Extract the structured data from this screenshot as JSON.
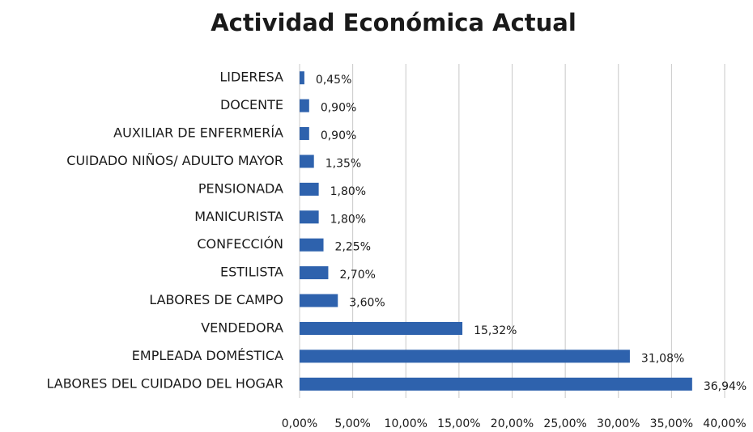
{
  "chart_data": {
    "type": "bar",
    "orientation": "horizontal",
    "title": "Actividad Económica Actual",
    "categories": [
      "LIDERESA",
      "DOCENTE",
      "AUXILIAR DE ENFERMERÍA",
      "CUIDADO NIÑOS/ ADULTO MAYOR",
      "PENSIONADA",
      "MANICURISTA",
      "CONFECCIÓN",
      "ESTILISTA",
      "LABORES DE CAMPO",
      "VENDEDORA",
      "EMPLEADA DOMÉSTICA",
      "LABORES DEL CUIDADO DEL HOGAR"
    ],
    "values": [
      0.45,
      0.9,
      0.9,
      1.35,
      1.8,
      1.8,
      2.25,
      2.7,
      3.6,
      15.32,
      31.08,
      36.94
    ],
    "value_labels": [
      "0,45%",
      "0,90%",
      "0,90%",
      "1,35%",
      "1,80%",
      "1,80%",
      "2,25%",
      "2,70%",
      "3,60%",
      "15,32%",
      "31,08%",
      "36,94%"
    ],
    "color": "#2e62ad",
    "xlim": [
      0,
      40
    ],
    "xticks": [
      {
        "value": 0,
        "label": "0,00%"
      },
      {
        "value": 5,
        "label": "5,00%"
      },
      {
        "value": 10,
        "label": "10,00%"
      },
      {
        "value": 15,
        "label": "15,00%"
      },
      {
        "value": 20,
        "label": "20,00%"
      },
      {
        "value": 25,
        "label": "25,00%"
      },
      {
        "value": 30,
        "label": "30,00%"
      },
      {
        "value": 35,
        "label": "35,00%"
      },
      {
        "value": 40,
        "label": "40,00%"
      }
    ],
    "grid": true
  }
}
